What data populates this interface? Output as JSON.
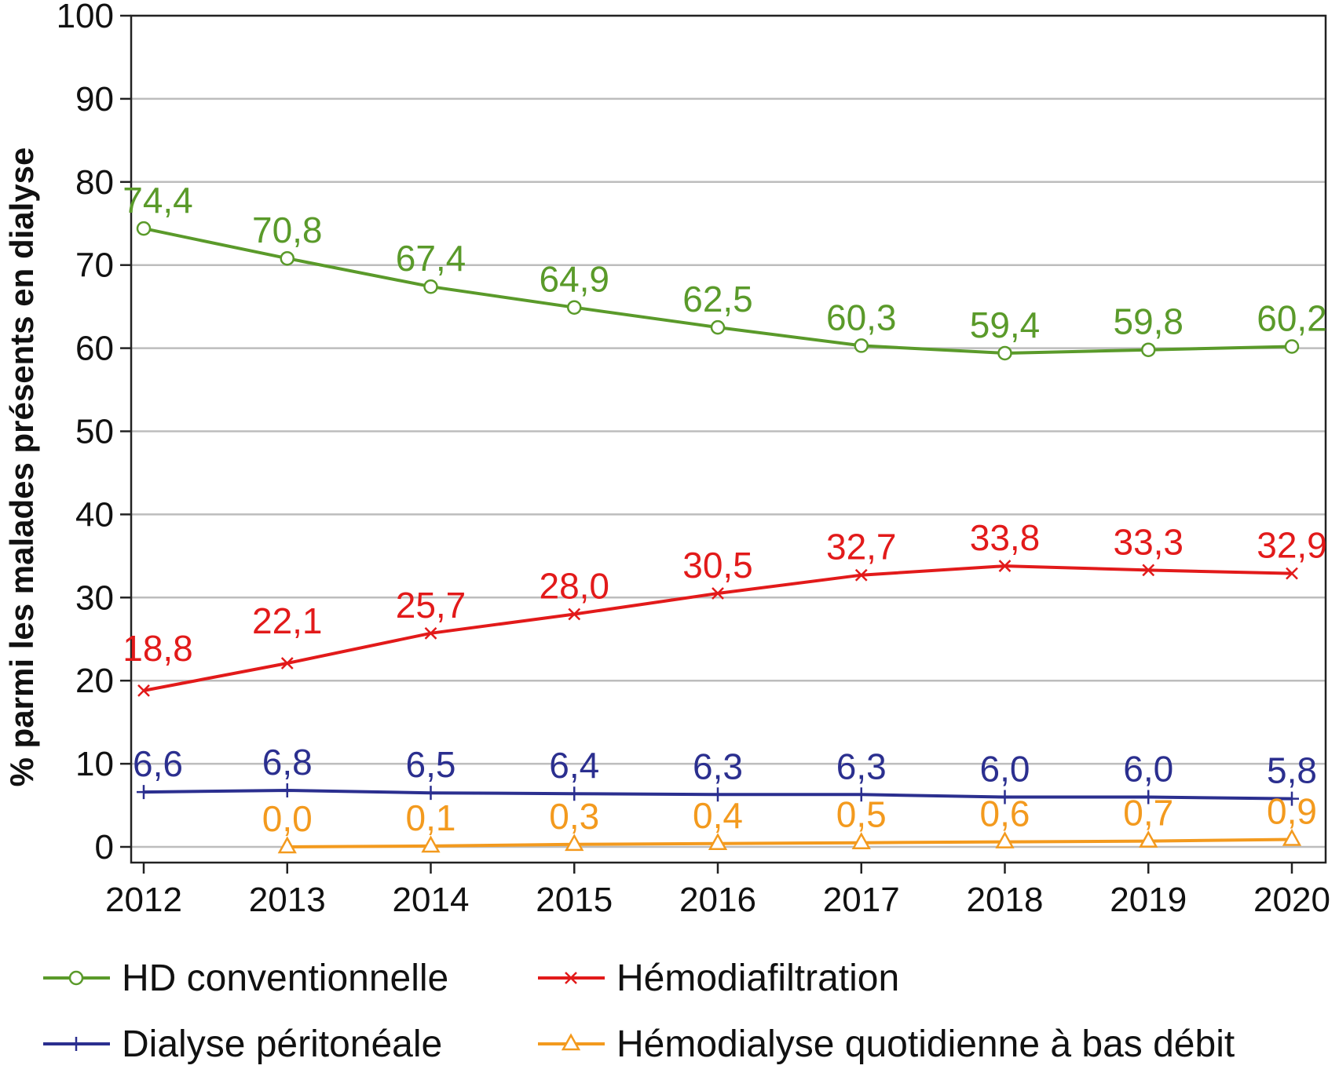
{
  "chart_data": {
    "type": "line",
    "title": "",
    "xlabel": "",
    "ylabel": "% parmi les malades présents en dialyse",
    "ylim": [
      0,
      100
    ],
    "yticks": [
      0,
      10,
      20,
      30,
      40,
      50,
      60,
      70,
      80,
      90,
      100
    ],
    "grid": true,
    "legend_position": "bottom",
    "categories": [
      "2012",
      "2013",
      "2014",
      "2015",
      "2016",
      "2017",
      "2018",
      "2019",
      "2020"
    ],
    "series": [
      {
        "name": "HD conventionnelle",
        "color": "#5a9a2a",
        "marker": "circle",
        "values": [
          74.4,
          70.8,
          67.4,
          64.9,
          62.5,
          60.3,
          59.4,
          59.8,
          60.2
        ],
        "labels": [
          "74,4",
          "70,8",
          "67,4",
          "64,9",
          "62,5",
          "60,3",
          "59,4",
          "59,8",
          "60,2"
        ]
      },
      {
        "name": "Hémodiafiltration",
        "color": "#e21a1a",
        "marker": "x",
        "values": [
          18.8,
          22.1,
          25.7,
          28.0,
          30.5,
          32.7,
          33.8,
          33.3,
          32.9
        ],
        "labels": [
          "18,8",
          "22,1",
          "25,7",
          "28,0",
          "30,5",
          "32,7",
          "33,8",
          "33,3",
          "32,9"
        ]
      },
      {
        "name": "Dialyse péritonéale",
        "color": "#2b2f8f",
        "marker": "plus",
        "values": [
          6.6,
          6.8,
          6.5,
          6.4,
          6.3,
          6.3,
          6.0,
          6.0,
          5.8
        ],
        "labels": [
          "6,6",
          "6,8",
          "6,5",
          "6,4",
          "6,3",
          "6,3",
          "6,0",
          "6,0",
          "5,8"
        ]
      },
      {
        "name": "Hémodialyse quotidienne à bas débit",
        "color": "#f39a1e",
        "marker": "triangle",
        "values": [
          null,
          0.0,
          0.1,
          0.3,
          0.4,
          0.5,
          0.6,
          0.7,
          0.9
        ],
        "labels": [
          null,
          "0,0",
          "0,1",
          "0,3",
          "0,4",
          "0,5",
          "0,6",
          "0,7",
          "0,9"
        ]
      }
    ]
  }
}
